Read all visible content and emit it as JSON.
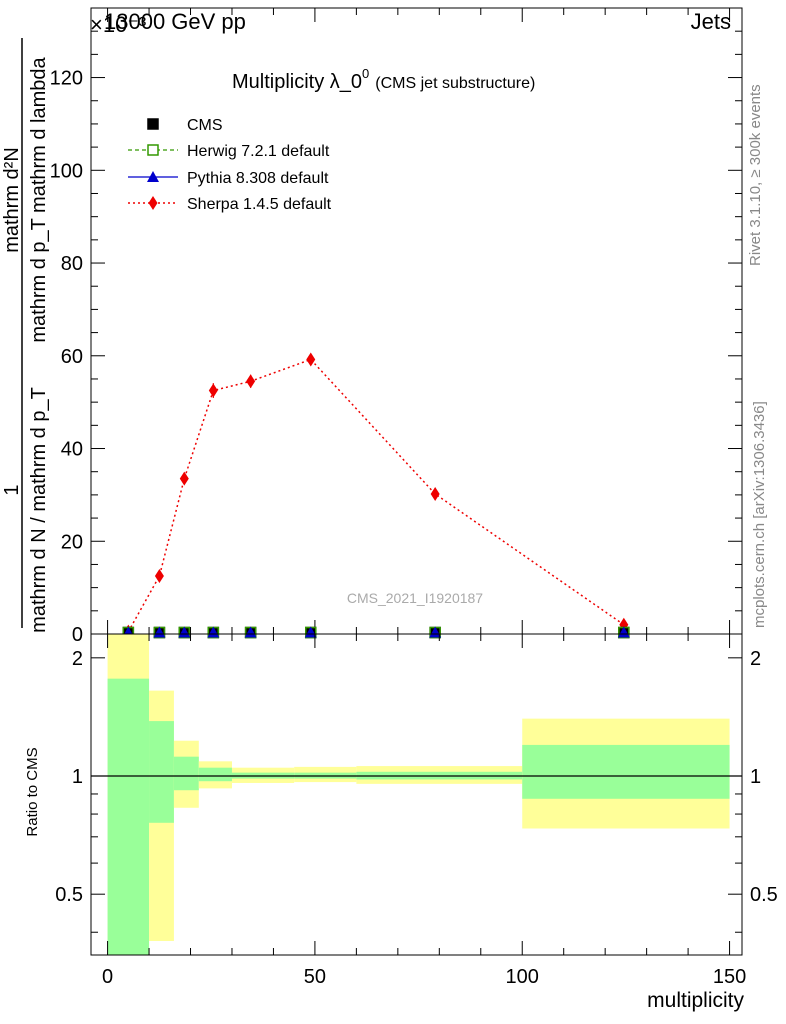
{
  "header": {
    "energy_label": "13000 GeV pp",
    "category_label": "Jets",
    "exponent_label": "×10⁻³"
  },
  "side_labels": {
    "rivet": "Rivet 3.1.10, ≥ 300k events",
    "mcplots": "mcplots.cern.ch [arXiv:1306.3436]"
  },
  "watermark": "CMS_2021_I1920187",
  "colors": {
    "cms": "#000000",
    "herwig": "#339900",
    "pythia": "#0000cc",
    "sherpa": "#ee0000",
    "band_inner": "#99ff99",
    "band_outer": "#ffff99"
  },
  "chart_data": [
    {
      "type": "line",
      "title": "Multiplicity λ_0⁰",
      "title_main": "Multiplicity λ_0",
      "title_sup": "0",
      "subtitle": "(CMS jet substructure)",
      "ylabel_numerator": "1",
      "ylabel_denominator": "mathrm d N / mathrm d p_T",
      "ylabel_frac_num": "mathrm d²N",
      "ylabel_frac_den": "mathrm d p_T mathrm d lambda",
      "ylabel_flat": "1 / (mathrm d N / mathrm d p_T) · mathrm d²N / (mathrm d p_T mathrm d lambda)",
      "y_scale_note": "×10⁻³",
      "xlim": [
        -4,
        153
      ],
      "ylim": [
        0,
        135
      ],
      "y_ticks": [
        0,
        20,
        40,
        60,
        80,
        100,
        120
      ],
      "y_tick_labels": [
        "0",
        "20",
        "40",
        "60",
        "80",
        "100",
        "120"
      ],
      "legend": [
        {
          "name": "CMS",
          "marker": "filled-square"
        },
        {
          "name": "Herwig 7.2.1 default",
          "marker": "open-square-dashed"
        },
        {
          "name": "Pythia 8.308 default",
          "marker": "triangle-solid"
        },
        {
          "name": "Sherpa 1.4.5 default",
          "marker": "diamond-dotted"
        }
      ],
      "series": [
        {
          "name": "CMS",
          "x": [
            5,
            12.5,
            18.5,
            25.5,
            34.5,
            49,
            79,
            124.5
          ],
          "y": [
            0.1,
            0.1,
            0.1,
            0.1,
            0.1,
            0.1,
            0.1,
            0.1
          ]
        },
        {
          "name": "Herwig 7.2.1 default",
          "x": [
            5,
            12.5,
            18.5,
            25.5,
            34.5,
            49,
            79,
            124.5
          ],
          "y": [
            0.1,
            0.1,
            0.1,
            0.1,
            0.1,
            0.1,
            0.1,
            0.1
          ]
        },
        {
          "name": "Pythia 8.308 default",
          "x": [
            5,
            12.5,
            18.5,
            25.5,
            34.5,
            49,
            79,
            124.5
          ],
          "y": [
            0.1,
            0.1,
            0.1,
            0.1,
            0.1,
            0.1,
            0.1,
            0.1
          ]
        },
        {
          "name": "Sherpa 1.4.5 default",
          "x": [
            5,
            12.5,
            18.5,
            25.5,
            34.5,
            49,
            79,
            124.5
          ],
          "y": [
            0.5,
            12.5,
            33.5,
            52.5,
            54.5,
            59.2,
            30.2,
            2.0
          ],
          "yerr": [
            0.3,
            0.6,
            1.2,
            1.6,
            1.4,
            0.9,
            0.7,
            0.4
          ]
        }
      ]
    },
    {
      "type": "area",
      "title": "Ratio to CMS",
      "xlabel": "multiplicity",
      "ylabel": "Ratio to CMS",
      "xlim": [
        -4,
        153
      ],
      "ylim": [
        0.35,
        2.3
      ],
      "y_scale": "log",
      "x_ticks": [
        0,
        50,
        100,
        150
      ],
      "x_tick_labels": [
        "0",
        "50",
        "100",
        "150"
      ],
      "y_ticks": [
        0.5,
        1,
        2
      ],
      "y_tick_labels": [
        "0.5",
        "1",
        "2"
      ],
      "reference_line": 1,
      "bins": [
        {
          "low": 0,
          "high": 10,
          "inner": [
            0.35,
            1.77
          ],
          "outer": [
            0.35,
            2.3
          ]
        },
        {
          "low": 10,
          "high": 16,
          "inner": [
            0.76,
            1.38
          ],
          "outer": [
            0.38,
            1.65
          ]
        },
        {
          "low": 16,
          "high": 22,
          "inner": [
            0.92,
            1.12
          ],
          "outer": [
            0.83,
            1.23
          ]
        },
        {
          "low": 22,
          "high": 30,
          "inner": [
            0.97,
            1.05
          ],
          "outer": [
            0.93,
            1.09
          ]
        },
        {
          "low": 30,
          "high": 45,
          "inner": [
            0.985,
            1.02
          ],
          "outer": [
            0.96,
            1.05
          ]
        },
        {
          "low": 45,
          "high": 60,
          "inner": [
            0.985,
            1.02
          ],
          "outer": [
            0.965,
            1.055
          ]
        },
        {
          "low": 60,
          "high": 100,
          "inner": [
            0.98,
            1.025
          ],
          "outer": [
            0.955,
            1.06
          ]
        },
        {
          "low": 100,
          "high": 150,
          "inner": [
            0.875,
            1.2
          ],
          "outer": [
            0.735,
            1.4
          ]
        }
      ]
    }
  ]
}
